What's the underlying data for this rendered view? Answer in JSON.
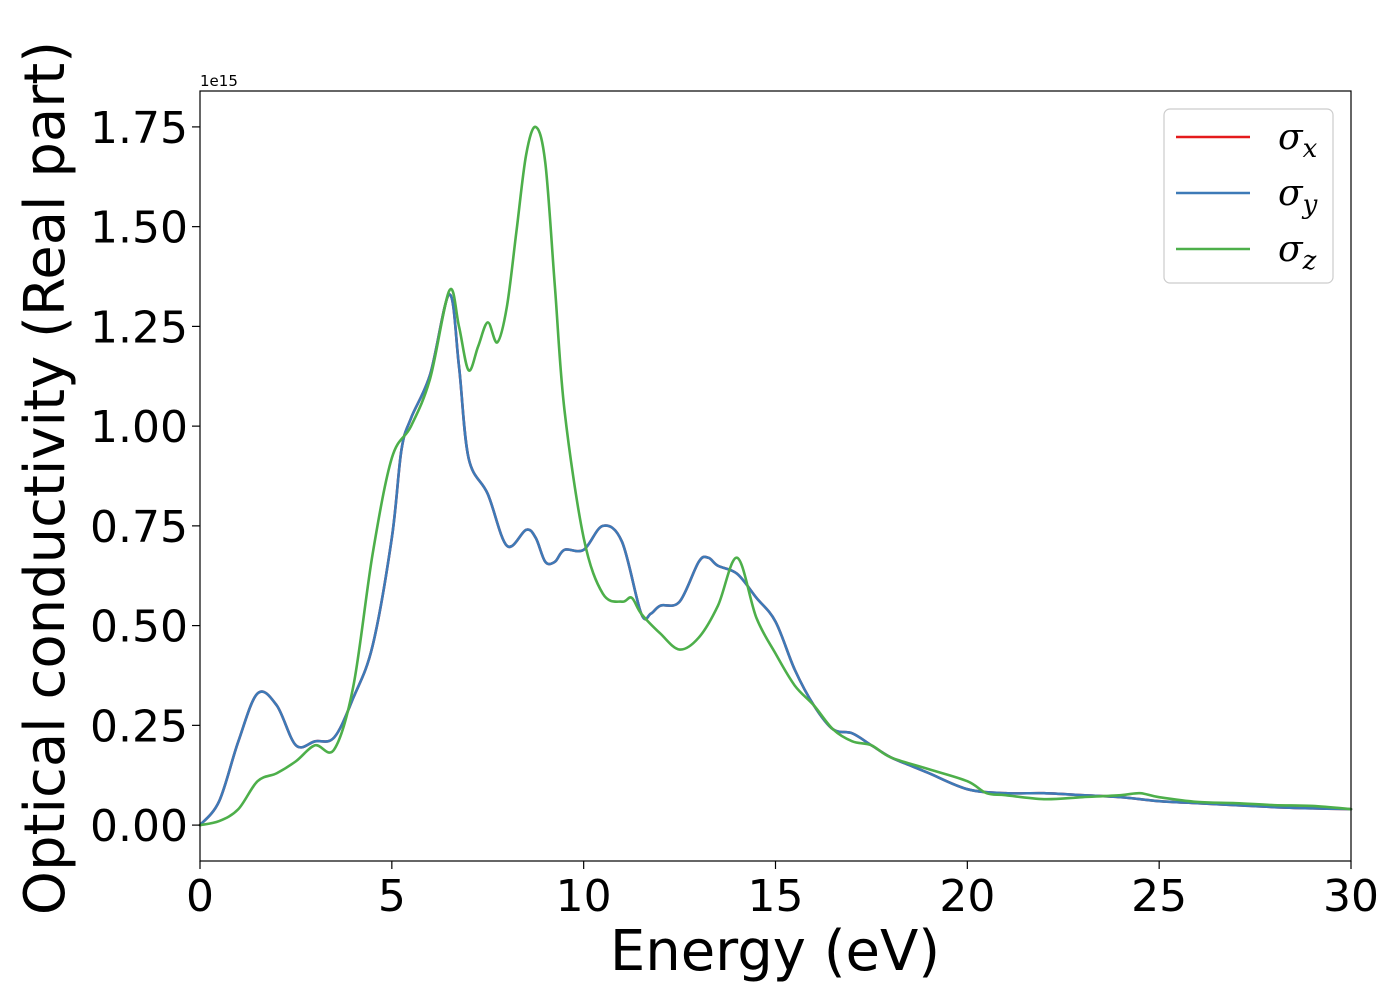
{
  "chart_data": {
    "type": "line",
    "title": "",
    "xlabel": "Energy (eV)",
    "ylabel": "Optical conductivity (Real part)",
    "y_offset_text": "1e15",
    "y_scale_factor": 1000000000000000.0,
    "xlim": [
      0,
      30
    ],
    "ylim": [
      -0.09,
      1.84
    ],
    "xticks": [
      0,
      5,
      10,
      15,
      20,
      25,
      30
    ],
    "xtick_labels": [
      "0",
      "5",
      "10",
      "15",
      "20",
      "25",
      "30"
    ],
    "yticks": [
      0,
      0.25,
      0.5,
      0.75,
      1.0,
      1.25,
      1.5,
      1.75
    ],
    "ytick_labels": [
      "0.00",
      "0.25",
      "0.50",
      "0.75",
      "1.00",
      "1.25",
      "1.50",
      "1.75"
    ],
    "grid": false,
    "legend_position": "top-right",
    "series": [
      {
        "name": "σx",
        "symbol": "σ",
        "subscript": "x",
        "color": "#e41a1c",
        "x": [
          0,
          0.5,
          1.0,
          1.5,
          2.0,
          2.5,
          3.0,
          3.5,
          4.0,
          4.5,
          5.0,
          5.25,
          5.5,
          6.0,
          6.5,
          6.75,
          7.0,
          7.5,
          8.0,
          8.5,
          8.75,
          9.0,
          9.25,
          9.5,
          10.0,
          10.5,
          11.0,
          11.5,
          11.75,
          12.0,
          12.5,
          13.0,
          13.25,
          13.5,
          14.0,
          14.5,
          15.0,
          15.5,
          16.0,
          16.5,
          17.0,
          17.5,
          18.0,
          18.5,
          19.0,
          20.0,
          21.0,
          22.0,
          23.0,
          24.0,
          25.0,
          26.0,
          27.0,
          28.0,
          29.0,
          30.0
        ],
        "y": [
          0.0,
          0.06,
          0.21,
          0.33,
          0.3,
          0.2,
          0.21,
          0.22,
          0.32,
          0.45,
          0.72,
          0.94,
          1.02,
          1.13,
          1.33,
          1.15,
          0.92,
          0.83,
          0.7,
          0.74,
          0.72,
          0.66,
          0.66,
          0.69,
          0.69,
          0.75,
          0.71,
          0.53,
          0.53,
          0.55,
          0.56,
          0.66,
          0.67,
          0.65,
          0.63,
          0.57,
          0.51,
          0.39,
          0.3,
          0.24,
          0.23,
          0.2,
          0.17,
          0.15,
          0.13,
          0.09,
          0.08,
          0.08,
          0.075,
          0.07,
          0.06,
          0.055,
          0.05,
          0.045,
          0.042,
          0.04
        ]
      },
      {
        "name": "σy",
        "symbol": "σ",
        "subscript": "y",
        "color": "#3d7ab7",
        "x": [
          0,
          0.5,
          1.0,
          1.5,
          2.0,
          2.5,
          3.0,
          3.5,
          4.0,
          4.5,
          5.0,
          5.25,
          5.5,
          6.0,
          6.5,
          6.75,
          7.0,
          7.5,
          8.0,
          8.5,
          8.75,
          9.0,
          9.25,
          9.5,
          10.0,
          10.5,
          11.0,
          11.5,
          11.75,
          12.0,
          12.5,
          13.0,
          13.25,
          13.5,
          14.0,
          14.5,
          15.0,
          15.5,
          16.0,
          16.5,
          17.0,
          17.5,
          18.0,
          18.5,
          19.0,
          20.0,
          21.0,
          22.0,
          23.0,
          24.0,
          25.0,
          26.0,
          27.0,
          28.0,
          29.0,
          30.0
        ],
        "y": [
          0.0,
          0.06,
          0.21,
          0.33,
          0.3,
          0.2,
          0.21,
          0.22,
          0.32,
          0.45,
          0.72,
          0.94,
          1.02,
          1.13,
          1.33,
          1.15,
          0.92,
          0.83,
          0.7,
          0.74,
          0.72,
          0.66,
          0.66,
          0.69,
          0.69,
          0.75,
          0.71,
          0.53,
          0.53,
          0.55,
          0.56,
          0.66,
          0.67,
          0.65,
          0.63,
          0.57,
          0.51,
          0.39,
          0.3,
          0.24,
          0.23,
          0.2,
          0.17,
          0.15,
          0.13,
          0.09,
          0.08,
          0.08,
          0.075,
          0.07,
          0.06,
          0.055,
          0.05,
          0.045,
          0.042,
          0.04
        ]
      },
      {
        "name": "σz",
        "symbol": "σ",
        "subscript": "z",
        "color": "#4daf4a",
        "x": [
          0,
          0.5,
          1.0,
          1.5,
          2.0,
          2.5,
          3.0,
          3.5,
          4.0,
          4.5,
          5.0,
          5.5,
          6.0,
          6.5,
          6.75,
          7.0,
          7.25,
          7.5,
          7.75,
          8.0,
          8.25,
          8.5,
          8.75,
          9.0,
          9.25,
          9.5,
          10.0,
          10.5,
          11.0,
          11.25,
          11.5,
          12.0,
          12.5,
          13.0,
          13.5,
          14.0,
          14.5,
          15.0,
          15.5,
          16.0,
          16.5,
          17.0,
          17.5,
          18.0,
          19.0,
          20.0,
          20.5,
          21.0,
          22.0,
          23.0,
          24.0,
          24.5,
          25.0,
          26.0,
          27.0,
          28.0,
          29.0,
          30.0
        ],
        "y": [
          0.0,
          0.01,
          0.04,
          0.11,
          0.13,
          0.16,
          0.2,
          0.19,
          0.35,
          0.68,
          0.92,
          1.0,
          1.12,
          1.34,
          1.25,
          1.14,
          1.2,
          1.26,
          1.21,
          1.3,
          1.49,
          1.68,
          1.75,
          1.66,
          1.35,
          1.04,
          0.72,
          0.58,
          0.56,
          0.57,
          0.53,
          0.48,
          0.44,
          0.47,
          0.55,
          0.67,
          0.52,
          0.43,
          0.35,
          0.3,
          0.24,
          0.21,
          0.2,
          0.17,
          0.14,
          0.11,
          0.08,
          0.075,
          0.065,
          0.07,
          0.075,
          0.08,
          0.07,
          0.058,
          0.055,
          0.05,
          0.048,
          0.04
        ]
      }
    ]
  }
}
